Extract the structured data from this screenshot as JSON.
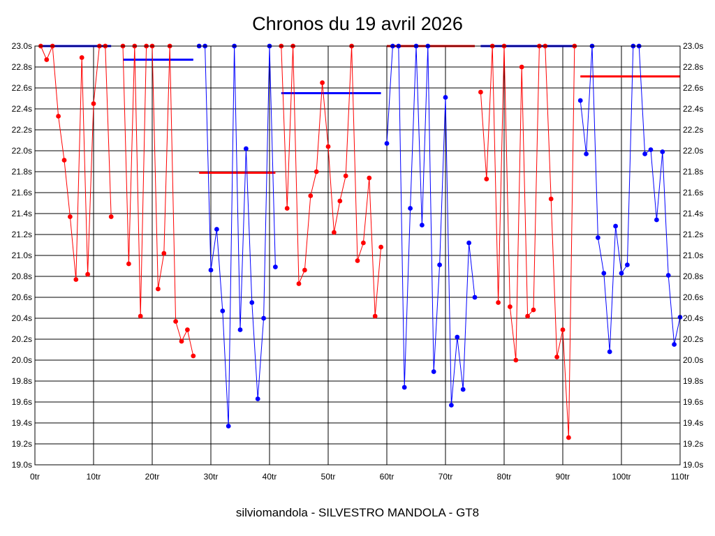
{
  "chart_data": {
    "type": "line",
    "title": "Chronos du 19 avril 2026",
    "footer": "silviomandola - SILVESTRO MANDOLA - GT8",
    "xlim": [
      0,
      110
    ],
    "ylim": [
      19.0,
      23.0
    ],
    "x_ticks": [
      0,
      10,
      20,
      30,
      40,
      50,
      60,
      70,
      80,
      90,
      100,
      110
    ],
    "x_tick_labels": [
      "0tr",
      "10tr",
      "20tr",
      "30tr",
      "40tr",
      "50tr",
      "60tr",
      "70tr",
      "80tr",
      "90tr",
      "100tr",
      "110tr"
    ],
    "y_ticks": [
      19.0,
      19.2,
      19.4,
      19.6,
      19.8,
      20.0,
      20.2,
      20.4,
      20.6,
      20.8,
      21.0,
      21.2,
      21.4,
      21.6,
      21.8,
      22.0,
      22.2,
      22.4,
      22.6,
      22.8,
      23.0
    ],
    "y_tick_labels": [
      "19.0s",
      "19.2s",
      "19.4s",
      "19.6s",
      "19.8s",
      "20.0s",
      "20.2s",
      "20.4s",
      "20.6s",
      "20.8s",
      "21.0s",
      "21.2s",
      "21.4s",
      "21.6s",
      "21.8s",
      "22.0s",
      "22.2s",
      "22.4s",
      "22.6s",
      "22.8s",
      "23.0s"
    ],
    "grid": true,
    "colors": {
      "red": "#ff0000",
      "blue": "#0000ff"
    },
    "series": [
      {
        "color": "red",
        "points": [
          [
            1,
            23.0
          ],
          [
            2,
            22.87
          ],
          [
            3,
            23.0
          ],
          [
            4,
            22.33
          ],
          [
            5,
            21.91
          ],
          [
            6,
            21.37
          ],
          [
            7,
            20.77
          ],
          [
            8,
            22.89
          ],
          [
            9,
            20.82
          ],
          [
            10,
            22.45
          ],
          [
            11,
            23.0
          ],
          [
            12,
            23.0
          ],
          [
            13,
            21.37
          ]
        ]
      },
      {
        "color": "red",
        "points": [
          [
            15,
            23.0
          ],
          [
            16,
            20.92
          ],
          [
            17,
            23.0
          ],
          [
            18,
            20.42
          ],
          [
            19,
            23.0
          ],
          [
            20,
            23.0
          ],
          [
            21,
            20.68
          ],
          [
            22,
            21.02
          ],
          [
            23,
            23.0
          ],
          [
            24,
            20.37
          ],
          [
            25,
            20.18
          ],
          [
            26,
            20.29
          ],
          [
            27,
            20.04
          ]
        ]
      },
      {
        "color": "blue",
        "points": [
          [
            28,
            23.0
          ],
          [
            29,
            23.0
          ],
          [
            30,
            20.86
          ],
          [
            31,
            21.25
          ],
          [
            32,
            20.47
          ],
          [
            33,
            19.37
          ],
          [
            34,
            23.0
          ],
          [
            35,
            20.29
          ],
          [
            36,
            22.02
          ],
          [
            37,
            20.55
          ],
          [
            38,
            19.63
          ],
          [
            39,
            20.4
          ],
          [
            40,
            23.0
          ],
          [
            41,
            20.89
          ]
        ]
      },
      {
        "color": "red",
        "points": [
          [
            42,
            23.0
          ],
          [
            43,
            21.45
          ],
          [
            44,
            23.0
          ],
          [
            45,
            20.73
          ],
          [
            46,
            20.86
          ],
          [
            47,
            21.57
          ],
          [
            48,
            21.8
          ],
          [
            49,
            22.65
          ],
          [
            50,
            22.04
          ],
          [
            51,
            21.22
          ],
          [
            52,
            21.52
          ],
          [
            53,
            21.76
          ],
          [
            54,
            23.0
          ],
          [
            55,
            20.95
          ],
          [
            56,
            21.12
          ],
          [
            57,
            21.74
          ],
          [
            58,
            20.42
          ],
          [
            59,
            21.08
          ]
        ]
      },
      {
        "color": "blue",
        "points": [
          [
            60,
            22.07
          ],
          [
            61,
            23.0
          ],
          [
            62,
            23.0
          ],
          [
            63,
            19.74
          ],
          [
            64,
            21.45
          ],
          [
            65,
            23.0
          ],
          [
            66,
            21.29
          ],
          [
            67,
            23.0
          ],
          [
            68,
            19.89
          ],
          [
            69,
            20.91
          ],
          [
            70,
            22.51
          ],
          [
            71,
            19.57
          ],
          [
            72,
            20.22
          ],
          [
            73,
            19.72
          ],
          [
            74,
            21.12
          ],
          [
            75,
            20.6
          ]
        ]
      },
      {
        "color": "red",
        "points": [
          [
            76,
            22.56
          ],
          [
            77,
            21.73
          ],
          [
            78,
            23.0
          ],
          [
            79,
            20.55
          ],
          [
            80,
            23.0
          ],
          [
            81,
            20.51
          ],
          [
            82,
            20.0
          ],
          [
            83,
            22.8
          ],
          [
            84,
            20.42
          ],
          [
            85,
            20.48
          ],
          [
            86,
            23.0
          ],
          [
            87,
            23.0
          ],
          [
            88,
            21.54
          ],
          [
            89,
            20.03
          ],
          [
            90,
            20.29
          ],
          [
            91,
            19.26
          ],
          [
            92,
            23.0
          ]
        ]
      },
      {
        "color": "blue",
        "points": [
          [
            93,
            22.48
          ],
          [
            94,
            21.97
          ],
          [
            95,
            23.0
          ],
          [
            96,
            21.17
          ],
          [
            97,
            20.83
          ],
          [
            98,
            20.08
          ],
          [
            99,
            21.28
          ],
          [
            100,
            20.83
          ],
          [
            101,
            20.91
          ],
          [
            102,
            23.0
          ],
          [
            103,
            23.0
          ],
          [
            104,
            21.97
          ],
          [
            105,
            22.01
          ],
          [
            106,
            21.34
          ],
          [
            107,
            21.99
          ],
          [
            108,
            20.81
          ],
          [
            109,
            20.15
          ],
          [
            110,
            20.41
          ]
        ]
      }
    ],
    "averages": [
      {
        "color": "blue",
        "x": [
          1,
          13
        ],
        "y": 23.0
      },
      {
        "color": "blue",
        "x": [
          15,
          27
        ],
        "y": 22.87
      },
      {
        "color": "red",
        "x": [
          28,
          41
        ],
        "y": 21.79
      },
      {
        "color": "blue",
        "x": [
          42,
          59
        ],
        "y": 22.55
      },
      {
        "color": "red",
        "x": [
          60,
          75
        ],
        "y": 23.0
      },
      {
        "color": "blue",
        "x": [
          76,
          92
        ],
        "y": 23.0
      },
      {
        "color": "red",
        "x": [
          93,
          110
        ],
        "y": 22.71
      }
    ]
  }
}
